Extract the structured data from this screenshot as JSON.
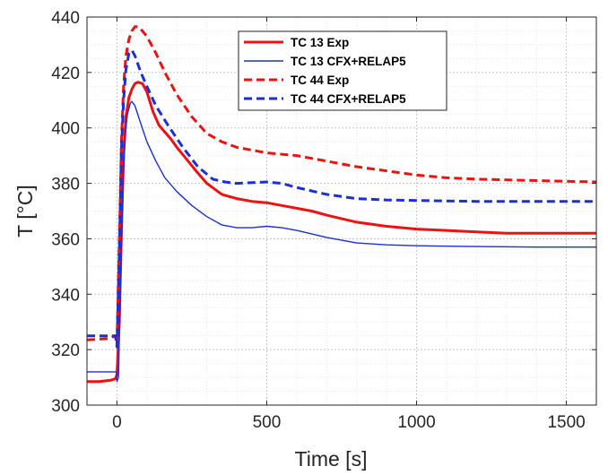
{
  "chart_data": {
    "type": "line",
    "title": "",
    "xlabel": "Time [s]",
    "ylabel": "T [°C]",
    "xlim": [
      -100,
      1600
    ],
    "ylim": [
      300,
      440
    ],
    "x_ticks": [
      0,
      500,
      1000,
      1500
    ],
    "y_ticks": [
      300,
      320,
      340,
      360,
      380,
      400,
      420,
      440
    ],
    "grid": true,
    "minor_grid": true,
    "legend_position": "top-right",
    "series": [
      {
        "name": "TC 13 Exp",
        "color": "#ee1111",
        "style": "solid",
        "width": "thick",
        "points": [
          [
            -100,
            308.5
          ],
          [
            -60,
            308.5
          ],
          [
            -20,
            309
          ],
          [
            -5,
            309.5
          ],
          [
            0,
            311
          ],
          [
            8,
            330
          ],
          [
            15,
            362
          ],
          [
            22,
            390
          ],
          [
            30,
            404
          ],
          [
            40,
            411
          ],
          [
            50,
            414
          ],
          [
            60,
            416
          ],
          [
            70,
            416.5
          ],
          [
            85,
            416
          ],
          [
            100,
            413
          ],
          [
            120,
            406
          ],
          [
            140,
            401
          ],
          [
            160,
            398.5
          ],
          [
            180,
            396
          ],
          [
            200,
            393
          ],
          [
            230,
            389
          ],
          [
            260,
            385
          ],
          [
            300,
            380
          ],
          [
            350,
            376
          ],
          [
            400,
            374.5
          ],
          [
            450,
            373.5
          ],
          [
            500,
            373
          ],
          [
            550,
            372
          ],
          [
            600,
            371
          ],
          [
            650,
            370
          ],
          [
            700,
            368.5
          ],
          [
            800,
            366
          ],
          [
            900,
            364.5
          ],
          [
            1000,
            363.5
          ],
          [
            1100,
            363
          ],
          [
            1200,
            362.5
          ],
          [
            1300,
            362
          ],
          [
            1400,
            362
          ],
          [
            1500,
            362
          ],
          [
            1600,
            362
          ]
        ]
      },
      {
        "name": "TC 13 CFX+RELAP5",
        "color": "#1a2fd6",
        "style": "solid",
        "width": "thin",
        "points": [
          [
            -100,
            312
          ],
          [
            -10,
            312
          ],
          [
            -2,
            312
          ],
          [
            0,
            308.5
          ],
          [
            5,
            310
          ],
          [
            12,
            345
          ],
          [
            20,
            380
          ],
          [
            28,
            398
          ],
          [
            35,
            405
          ],
          [
            45,
            409
          ],
          [
            50,
            409.5
          ],
          [
            60,
            408
          ],
          [
            75,
            403
          ],
          [
            100,
            395
          ],
          [
            130,
            388
          ],
          [
            160,
            382
          ],
          [
            200,
            377
          ],
          [
            250,
            372
          ],
          [
            300,
            368
          ],
          [
            350,
            365
          ],
          [
            400,
            364
          ],
          [
            450,
            364
          ],
          [
            500,
            364.5
          ],
          [
            550,
            364
          ],
          [
            600,
            363
          ],
          [
            700,
            360.5
          ],
          [
            800,
            358.5
          ],
          [
            900,
            357.8
          ],
          [
            1000,
            357.5
          ],
          [
            1200,
            357.2
          ],
          [
            1400,
            357
          ],
          [
            1600,
            357
          ]
        ]
      },
      {
        "name": "TC 44 Exp",
        "color": "#ee1111",
        "style": "dashed",
        "width": "thick",
        "points": [
          [
            -100,
            323.5
          ],
          [
            -30,
            324
          ],
          [
            -5,
            325
          ],
          [
            0,
            322
          ],
          [
            8,
            360
          ],
          [
            15,
            395
          ],
          [
            22,
            415
          ],
          [
            30,
            426
          ],
          [
            40,
            432
          ],
          [
            50,
            435
          ],
          [
            60,
            436.5
          ],
          [
            70,
            436.5
          ],
          [
            85,
            435
          ],
          [
            100,
            433
          ],
          [
            130,
            427
          ],
          [
            160,
            420
          ],
          [
            200,
            412
          ],
          [
            250,
            404
          ],
          [
            300,
            398
          ],
          [
            350,
            395
          ],
          [
            400,
            393
          ],
          [
            500,
            391
          ],
          [
            600,
            390
          ],
          [
            700,
            388
          ],
          [
            800,
            386
          ],
          [
            900,
            384.5
          ],
          [
            1000,
            383
          ],
          [
            1100,
            382
          ],
          [
            1200,
            381.5
          ],
          [
            1400,
            381
          ],
          [
            1600,
            380.5
          ]
        ]
      },
      {
        "name": "TC 44 CFX+RELAP5",
        "color": "#1a2fd6",
        "style": "dashed",
        "width": "thick",
        "points": [
          [
            -100,
            325
          ],
          [
            -5,
            325
          ],
          [
            0,
            321
          ],
          [
            8,
            355
          ],
          [
            15,
            392
          ],
          [
            22,
            410
          ],
          [
            30,
            421
          ],
          [
            40,
            427
          ],
          [
            50,
            428
          ],
          [
            60,
            426
          ],
          [
            80,
            420
          ],
          [
            100,
            415
          ],
          [
            130,
            408
          ],
          [
            170,
            401
          ],
          [
            220,
            393
          ],
          [
            270,
            386
          ],
          [
            320,
            381.5
          ],
          [
            360,
            380.5
          ],
          [
            400,
            380
          ],
          [
            500,
            380.5
          ],
          [
            550,
            380
          ],
          [
            600,
            378.5
          ],
          [
            700,
            376
          ],
          [
            800,
            374.5
          ],
          [
            900,
            374
          ],
          [
            1000,
            373.8
          ],
          [
            1200,
            373.5
          ],
          [
            1400,
            373.5
          ],
          [
            1600,
            373.5
          ]
        ]
      }
    ]
  }
}
